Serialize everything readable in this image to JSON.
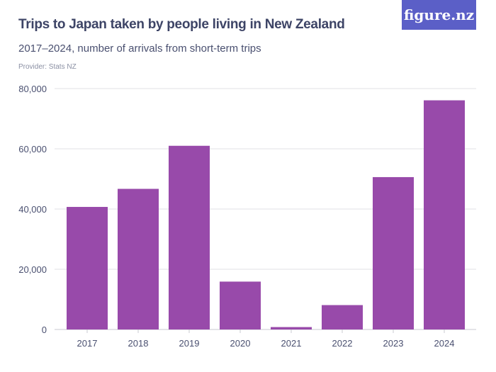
{
  "logo": "figure.nz",
  "chart_data": {
    "type": "bar",
    "title": "Trips to Japan taken by people living in New Zealand",
    "subtitle": "2017–2024, number of arrivals from short-term trips",
    "provider": "Provider: Stats NZ",
    "categories": [
      "2017",
      "2018",
      "2019",
      "2020",
      "2021",
      "2022",
      "2023",
      "2024"
    ],
    "values": [
      40700,
      46700,
      61000,
      15900,
      800,
      8100,
      50600,
      76100
    ],
    "yticks": [
      "0",
      "20,000",
      "40,000",
      "60,000",
      "80,000"
    ],
    "ylim": [
      0,
      80000
    ],
    "grid": true,
    "bar_color": "#984aaa",
    "xlabel": "",
    "ylabel": ""
  }
}
